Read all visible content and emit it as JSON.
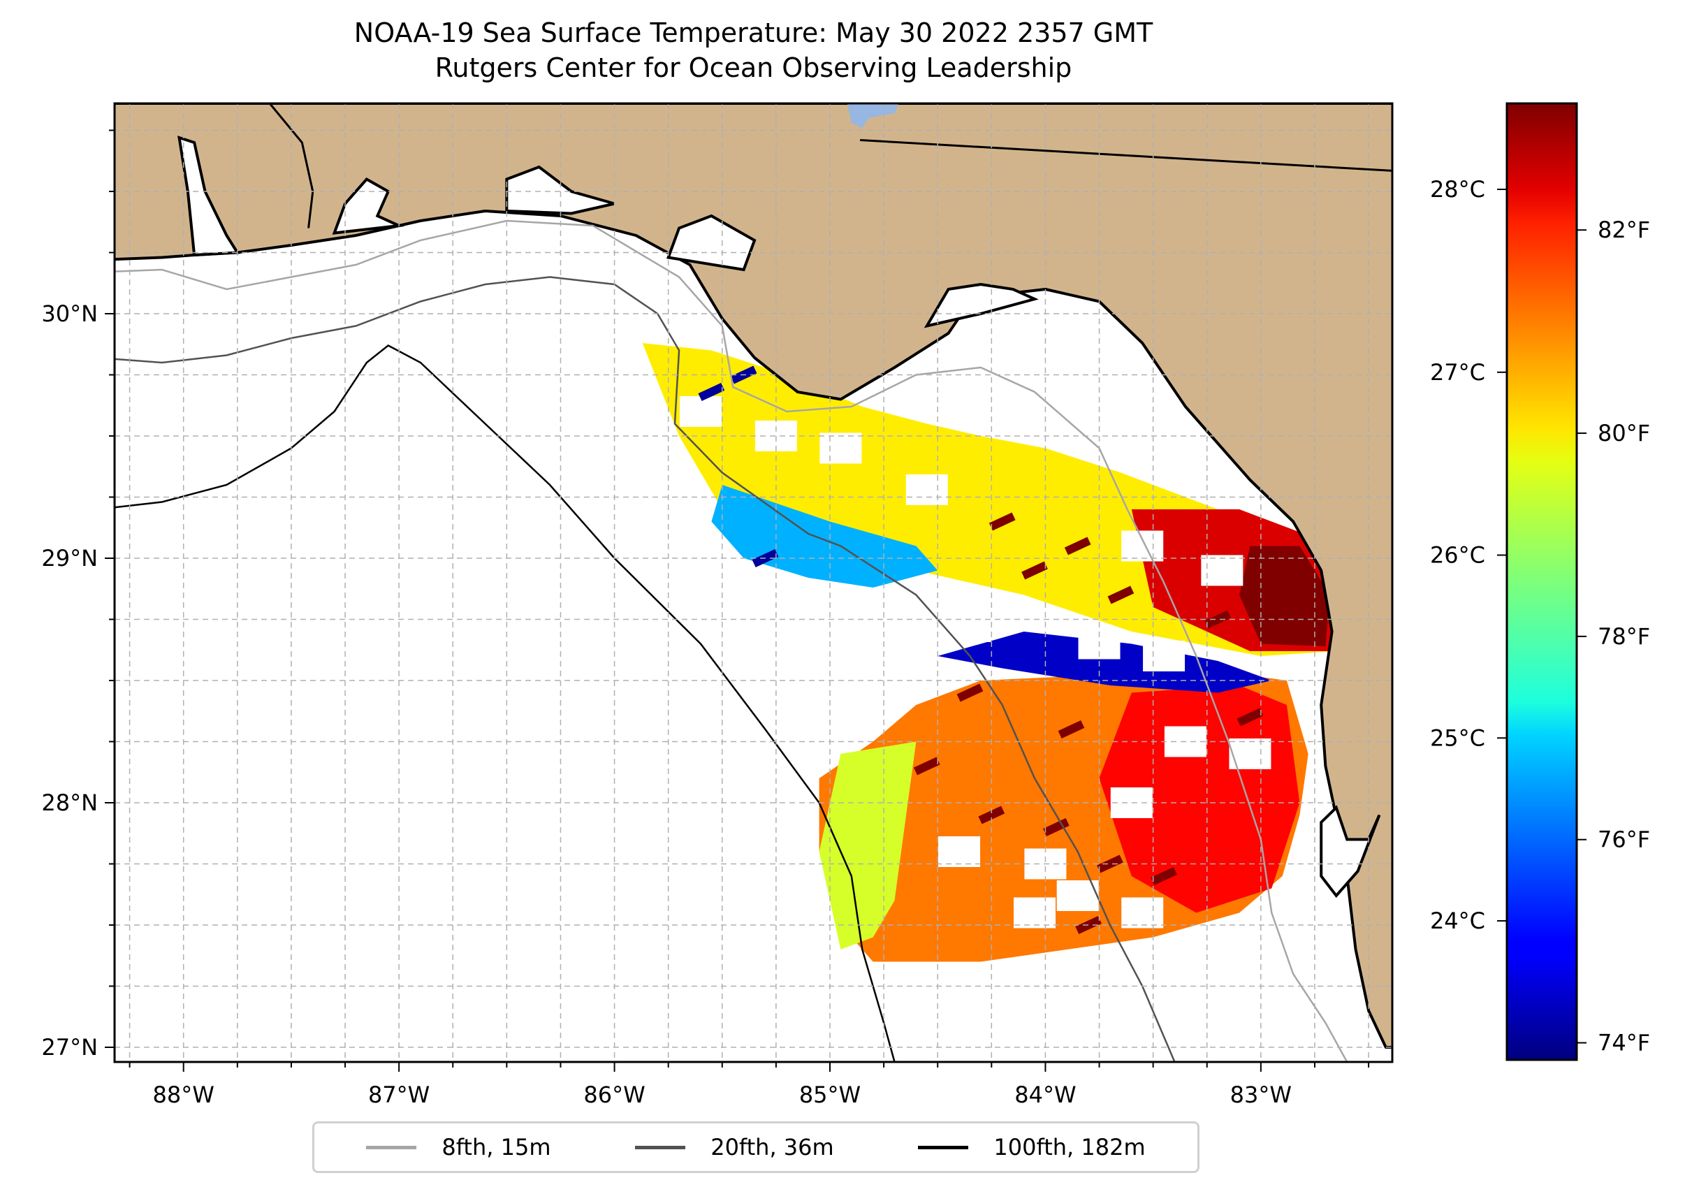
{
  "title": {
    "line1": "NOAA-19 Sea Surface Temperature: May 30 2022 2357 GMT",
    "line2": "Rutgers Center for Ocean Observing Leadership"
  },
  "colors": {
    "land": "#d2b48c",
    "lake": "#97b6e1",
    "grid": "#b0b0b0",
    "contour_8fth": "#a6a6a6",
    "contour_20fth": "#525252",
    "contour_100fth": "#000000"
  },
  "chart_data": {
    "type": "heatmap",
    "title": "NOAA-19 Sea Surface Temperature: May 30 2022 2357 GMT",
    "subtitle": "Rutgers Center for Ocean Observing Leadership",
    "extent": {
      "lon": [
        -88.32,
        -82.39
      ],
      "lat": [
        26.94,
        30.86
      ]
    },
    "x_ticks": [
      {
        "value": -88,
        "label": "88°W"
      },
      {
        "value": -87,
        "label": "87°W"
      },
      {
        "value": -86,
        "label": "86°W"
      },
      {
        "value": -85,
        "label": "85°W"
      },
      {
        "value": -84,
        "label": "84°W"
      },
      {
        "value": -83,
        "label": "83°W"
      }
    ],
    "y_ticks": [
      {
        "value": 30,
        "label": "30°N"
      },
      {
        "value": 29,
        "label": "29°N"
      },
      {
        "value": 28,
        "label": "28°N"
      },
      {
        "value": 27,
        "label": "27°N"
      }
    ],
    "grid": true,
    "grid_step_deg": 0.25,
    "colorbar": {
      "cmap": "jet",
      "range_c": [
        23.24,
        28.47
      ],
      "ticks_c": [
        {
          "value": 28,
          "label": "28°C"
        },
        {
          "value": 27,
          "label": "27°C"
        },
        {
          "value": 26,
          "label": "26°C"
        },
        {
          "value": 25,
          "label": "25°C"
        },
        {
          "value": 24,
          "label": "24°C"
        }
      ],
      "ticks_f": [
        {
          "value": 82,
          "label": "82°F"
        },
        {
          "value": 80,
          "label": "80°F"
        },
        {
          "value": 78,
          "label": "78°F"
        },
        {
          "value": 76,
          "label": "76°F"
        },
        {
          "value": 74,
          "label": "74°F"
        }
      ]
    },
    "legend": {
      "placement": "bottom-center",
      "entries": [
        {
          "label": "8fth, 15m",
          "color": "#a6a6a6"
        },
        {
          "label": "20fth, 36m",
          "color": "#525252"
        },
        {
          "label": "100fth, 182m",
          "color": "#000000"
        }
      ]
    },
    "sst_patches_c": [
      {
        "name": "big-bend-north",
        "lonlat": [
          [
            -85.87,
            29.88
          ],
          [
            -85.55,
            29.85
          ],
          [
            -85.2,
            29.75
          ],
          [
            -84.85,
            29.62
          ],
          [
            -84.55,
            29.55
          ],
          [
            -84.3,
            29.5
          ],
          [
            -84.0,
            29.45
          ],
          [
            -83.65,
            29.35
          ],
          [
            -83.2,
            29.2
          ],
          [
            -82.88,
            29.0
          ],
          [
            -82.75,
            28.8
          ],
          [
            -82.65,
            28.62
          ],
          [
            -83.0,
            28.6
          ],
          [
            -83.6,
            28.7
          ],
          [
            -84.1,
            28.85
          ],
          [
            -84.6,
            28.95
          ],
          [
            -85.1,
            29.05
          ],
          [
            -85.5,
            29.2
          ],
          [
            -85.7,
            29.5
          ]
        ],
        "value": 26.6
      },
      {
        "name": "warm-east",
        "lonlat": [
          [
            -83.6,
            29.2
          ],
          [
            -83.1,
            29.2
          ],
          [
            -82.8,
            29.1
          ],
          [
            -82.65,
            28.85
          ],
          [
            -82.68,
            28.62
          ],
          [
            -83.05,
            28.62
          ],
          [
            -83.5,
            28.8
          ]
        ],
        "value": 28.0
      },
      {
        "name": "hot-core",
        "lonlat": [
          [
            -83.05,
            29.05
          ],
          [
            -82.82,
            29.05
          ],
          [
            -82.68,
            28.85
          ],
          [
            -82.7,
            28.64
          ],
          [
            -83.0,
            28.65
          ],
          [
            -83.1,
            28.85
          ]
        ],
        "value": 28.5
      },
      {
        "name": "cool-band-west",
        "lonlat": [
          [
            -85.5,
            29.3
          ],
          [
            -85.0,
            29.15
          ],
          [
            -84.6,
            29.05
          ],
          [
            -84.5,
            28.95
          ],
          [
            -84.8,
            28.88
          ],
          [
            -85.1,
            28.92
          ],
          [
            -85.4,
            29.0
          ],
          [
            -85.55,
            29.15
          ]
        ],
        "value": 24.8
      },
      {
        "name": "south-swath",
        "lonlat": [
          [
            -84.3,
            28.5
          ],
          [
            -83.8,
            28.52
          ],
          [
            -83.3,
            28.55
          ],
          [
            -82.88,
            28.5
          ],
          [
            -82.78,
            28.2
          ],
          [
            -82.82,
            27.95
          ],
          [
            -82.9,
            27.7
          ],
          [
            -83.1,
            27.55
          ],
          [
            -83.5,
            27.45
          ],
          [
            -83.9,
            27.4
          ],
          [
            -84.3,
            27.35
          ],
          [
            -84.8,
            27.35
          ],
          [
            -84.95,
            27.5
          ],
          [
            -85.05,
            27.8
          ],
          [
            -85.05,
            28.1
          ],
          [
            -84.8,
            28.25
          ],
          [
            -84.6,
            28.4
          ]
        ],
        "value": 27.2
      },
      {
        "name": "south-warm-east",
        "lonlat": [
          [
            -83.6,
            28.45
          ],
          [
            -83.1,
            28.48
          ],
          [
            -82.88,
            28.4
          ],
          [
            -82.82,
            28.0
          ],
          [
            -82.95,
            27.65
          ],
          [
            -83.3,
            27.55
          ],
          [
            -83.6,
            27.7
          ],
          [
            -83.75,
            28.1
          ]
        ],
        "value": 27.8
      },
      {
        "name": "cool-band-mid",
        "lonlat": [
          [
            -84.1,
            28.7
          ],
          [
            -83.6,
            28.65
          ],
          [
            -83.2,
            28.58
          ],
          [
            -82.95,
            28.5
          ],
          [
            -83.2,
            28.45
          ],
          [
            -83.7,
            28.48
          ],
          [
            -84.2,
            28.55
          ],
          [
            -84.5,
            28.6
          ]
        ],
        "value": 23.6
      },
      {
        "name": "south-yellow-west",
        "lonlat": [
          [
            -84.95,
            28.2
          ],
          [
            -84.6,
            28.25
          ],
          [
            -84.7,
            27.6
          ],
          [
            -84.8,
            27.45
          ],
          [
            -84.95,
            27.4
          ],
          [
            -85.05,
            27.8
          ]
        ],
        "value": 26.3
      }
    ]
  }
}
